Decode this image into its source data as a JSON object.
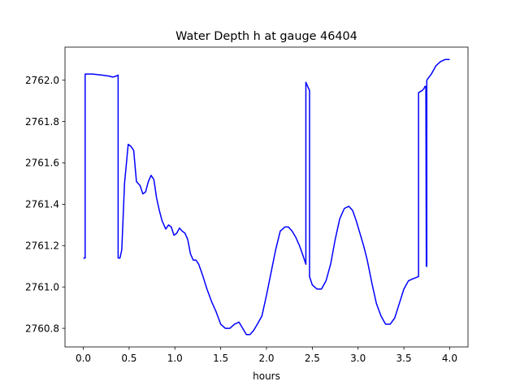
{
  "chart_data": {
    "type": "line",
    "title": "Water Depth h at gauge 46404",
    "xlabel": "hours",
    "ylabel": "",
    "xlim": [
      -0.2,
      4.2
    ],
    "ylim": [
      2760.71,
      2762.16
    ],
    "x_ticks": [
      0.0,
      0.5,
      1.0,
      1.5,
      2.0,
      2.5,
      3.0,
      3.5,
      4.0
    ],
    "x_tick_labels": [
      "0.0",
      "0.5",
      "1.0",
      "1.5",
      "2.0",
      "2.5",
      "3.0",
      "3.5",
      "4.0"
    ],
    "y_ticks": [
      2760.8,
      2761.0,
      2761.2,
      2761.4,
      2761.6,
      2761.8,
      2762.0
    ],
    "y_tick_labels": [
      "2760.8",
      "2761.0",
      "2761.2",
      "2761.4",
      "2761.6",
      "2761.8",
      "2762.0"
    ],
    "grid": false,
    "series": [
      {
        "color": "#0000ff",
        "x": [
          0.0,
          0.02,
          0.02,
          0.05,
          0.1,
          0.2,
          0.28,
          0.32,
          0.36,
          0.38,
          0.38,
          0.4,
          0.42,
          0.45,
          0.49,
          0.52,
          0.55,
          0.58,
          0.6,
          0.62,
          0.65,
          0.68,
          0.71,
          0.74,
          0.77,
          0.8,
          0.83,
          0.86,
          0.9,
          0.93,
          0.96,
          0.99,
          1.02,
          1.05,
          1.08,
          1.11,
          1.14,
          1.17,
          1.2,
          1.23,
          1.26,
          1.3,
          1.35,
          1.4,
          1.45,
          1.5,
          1.55,
          1.6,
          1.65,
          1.7,
          1.74,
          1.78,
          1.82,
          1.86,
          1.9,
          1.95,
          2.0,
          2.05,
          2.1,
          2.15,
          2.2,
          2.24,
          2.28,
          2.32,
          2.36,
          2.4,
          2.43,
          2.43,
          2.47,
          2.47,
          2.5,
          2.55,
          2.6,
          2.65,
          2.7,
          2.75,
          2.8,
          2.85,
          2.9,
          2.94,
          2.98,
          3.02,
          3.06,
          3.1,
          3.15,
          3.2,
          3.25,
          3.3,
          3.35,
          3.4,
          3.45,
          3.5,
          3.55,
          3.6,
          3.66,
          3.66,
          3.7,
          3.72,
          3.73,
          3.74,
          3.745,
          3.75,
          3.75,
          3.8,
          3.85,
          3.9,
          3.95,
          4.0
        ],
        "y": [
          2761.14,
          2761.14,
          2762.03,
          2762.03,
          2762.03,
          2762.025,
          2762.02,
          2762.015,
          2762.02,
          2762.025,
          2761.14,
          2761.14,
          2761.18,
          2761.5,
          2761.69,
          2761.68,
          2761.66,
          2761.51,
          2761.5,
          2761.49,
          2761.45,
          2761.46,
          2761.51,
          2761.54,
          2761.52,
          2761.43,
          2761.37,
          2761.32,
          2761.28,
          2761.3,
          2761.29,
          2761.25,
          2761.26,
          2761.285,
          2761.27,
          2761.26,
          2761.23,
          2761.16,
          2761.13,
          2761.13,
          2761.11,
          2761.06,
          2760.99,
          2760.93,
          2760.88,
          2760.82,
          2760.8,
          2760.8,
          2760.82,
          2760.83,
          2760.8,
          2760.77,
          2760.77,
          2760.79,
          2760.82,
          2760.86,
          2760.96,
          2761.07,
          2761.18,
          2761.27,
          2761.29,
          2761.29,
          2761.27,
          2761.24,
          2761.2,
          2761.15,
          2761.11,
          2761.99,
          2761.95,
          2761.05,
          2761.01,
          2760.99,
          2760.99,
          2761.03,
          2761.11,
          2761.23,
          2761.33,
          2761.38,
          2761.39,
          2761.37,
          2761.32,
          2761.26,
          2761.2,
          2761.13,
          2761.02,
          2760.92,
          2760.86,
          2760.82,
          2760.82,
          2760.85,
          2760.92,
          2760.99,
          2761.03,
          2761.04,
          2761.05,
          2761.94,
          2761.95,
          2761.96,
          2761.97,
          2761.97,
          2761.1,
          2761.1,
          2762.0,
          2762.03,
          2762.07,
          2762.09,
          2762.1,
          2762.1
        ]
      }
    ]
  }
}
